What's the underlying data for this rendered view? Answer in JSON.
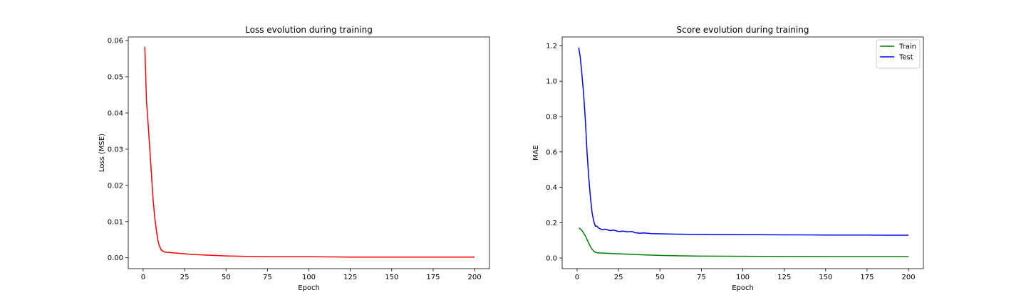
{
  "chart_data": [
    {
      "type": "line",
      "title": "Loss evolution during training",
      "xlabel": "Epoch",
      "ylabel": "Loss (MSE)",
      "xlim": [
        -9,
        209
      ],
      "ylim": [
        -0.003,
        0.061
      ],
      "xticks": [
        0,
        25,
        50,
        75,
        100,
        125,
        150,
        175,
        200
      ],
      "yticks": [
        0.0,
        0.01,
        0.02,
        0.03,
        0.04,
        0.05,
        0.06
      ],
      "ytick_labels": [
        "0.00",
        "0.01",
        "0.02",
        "0.03",
        "0.04",
        "0.05",
        "0.06"
      ],
      "grid": false,
      "legend": null,
      "series": [
        {
          "color": "#ff0000",
          "x": [
            1,
            2,
            3,
            4,
            5,
            6,
            7,
            8,
            9,
            10,
            11,
            12,
            13,
            15,
            20,
            25,
            30,
            40,
            50,
            60,
            75,
            100,
            125,
            150,
            175,
            200
          ],
          "y": [
            0.0583,
            0.0433,
            0.037,
            0.03,
            0.023,
            0.016,
            0.011,
            0.0075,
            0.0045,
            0.003,
            0.0021,
            0.0018,
            0.0016,
            0.0015,
            0.0013,
            0.0011,
            0.0009,
            0.0007,
            0.0005,
            0.0004,
            0.0003,
            0.0003,
            0.0002,
            0.0002,
            0.0002,
            0.0002
          ]
        }
      ]
    },
    {
      "type": "line",
      "title": "Score evolution during training",
      "xlabel": "Epoch",
      "ylabel": "MAE",
      "xlim": [
        -9,
        209
      ],
      "ylim": [
        -0.06,
        1.25
      ],
      "xticks": [
        0,
        25,
        50,
        75,
        100,
        125,
        150,
        175,
        200
      ],
      "yticks": [
        0.0,
        0.2,
        0.4,
        0.6,
        0.8,
        1.0,
        1.2
      ],
      "ytick_labels": [
        "0.0",
        "0.2",
        "0.4",
        "0.6",
        "0.8",
        "1.0",
        "1.2"
      ],
      "grid": false,
      "legend": "top-right",
      "series": [
        {
          "name": "Train",
          "color": "#008000",
          "x": [
            1,
            2,
            3,
            4,
            5,
            6,
            7,
            8,
            9,
            10,
            11,
            12,
            13,
            15,
            18,
            20,
            25,
            30,
            35,
            40,
            50,
            60,
            75,
            100,
            125,
            150,
            175,
            200
          ],
          "y": [
            0.17,
            0.165,
            0.155,
            0.14,
            0.125,
            0.105,
            0.085,
            0.065,
            0.05,
            0.04,
            0.033,
            0.03,
            0.029,
            0.028,
            0.027,
            0.026,
            0.024,
            0.022,
            0.02,
            0.018,
            0.015,
            0.013,
            0.011,
            0.01,
            0.009,
            0.008,
            0.008,
            0.008
          ]
        },
        {
          "name": "Test",
          "color": "#0000ff",
          "x": [
            1,
            2,
            3,
            4,
            5,
            6,
            7,
            8,
            9,
            10,
            11,
            12,
            13,
            14,
            15,
            17,
            20,
            22,
            25,
            28,
            30,
            33,
            35,
            38,
            40,
            45,
            50,
            55,
            60,
            70,
            75,
            80,
            90,
            100,
            110,
            125,
            135,
            150,
            160,
            175,
            185,
            200
          ],
          "y": [
            1.19,
            1.13,
            1.03,
            0.92,
            0.78,
            0.6,
            0.46,
            0.35,
            0.26,
            0.21,
            0.18,
            0.18,
            0.17,
            0.165,
            0.16,
            0.163,
            0.155,
            0.158,
            0.15,
            0.152,
            0.148,
            0.15,
            0.143,
            0.14,
            0.142,
            0.138,
            0.137,
            0.136,
            0.135,
            0.134,
            0.134,
            0.133,
            0.133,
            0.132,
            0.132,
            0.131,
            0.131,
            0.13,
            0.13,
            0.13,
            0.129,
            0.129
          ]
        }
      ]
    }
  ]
}
